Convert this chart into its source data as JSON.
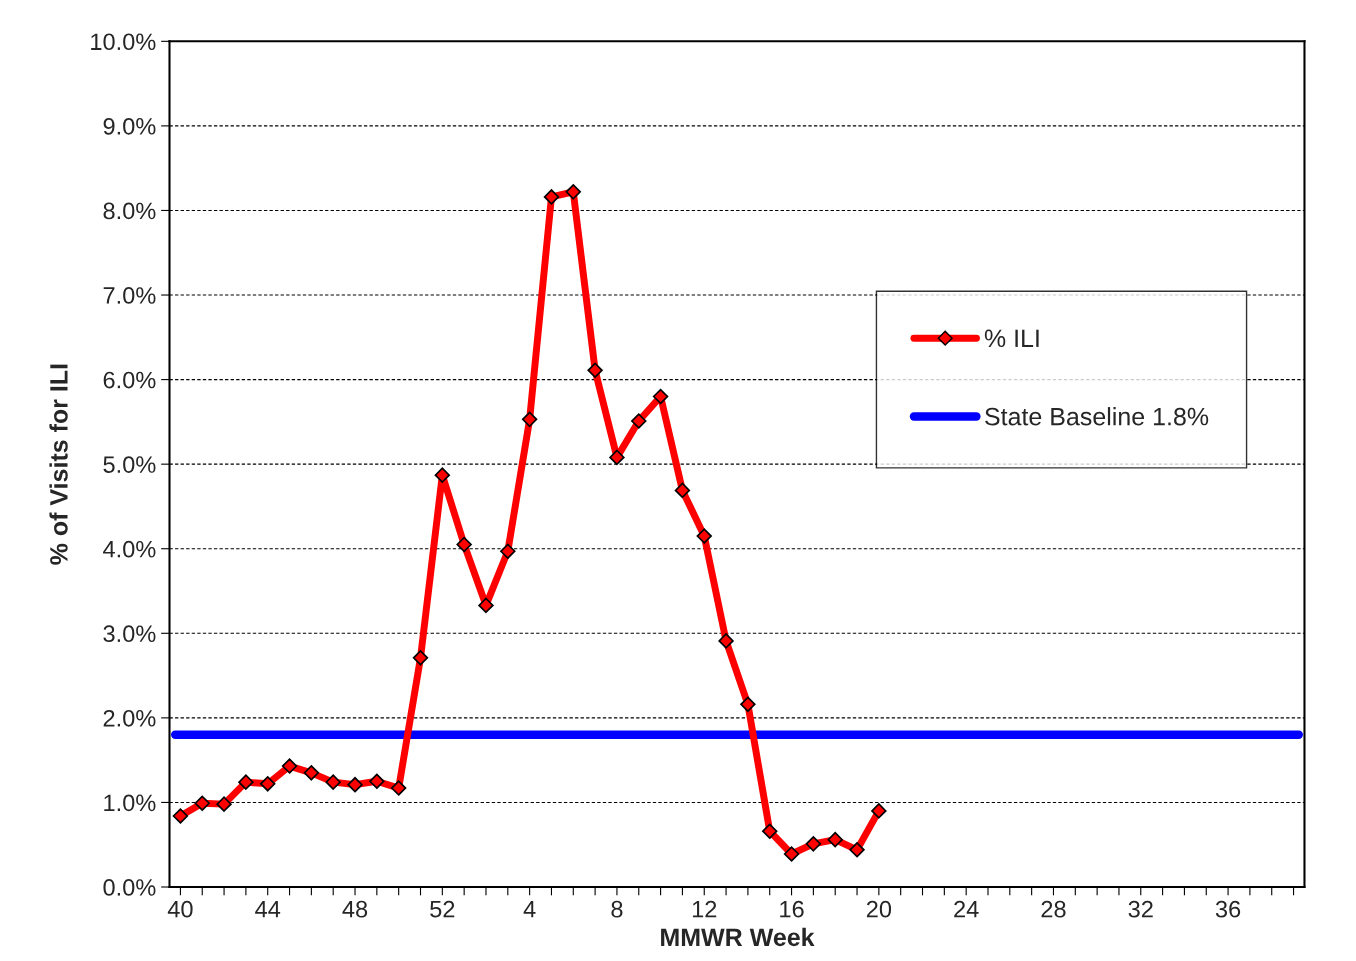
{
  "chart_data": {
    "type": "line",
    "xlabel": "MMWR Week",
    "ylabel": "% of Visits for ILI",
    "categories": [
      "40",
      null,
      null,
      null,
      "44",
      null,
      null,
      null,
      "48",
      null,
      null,
      null,
      "52",
      null,
      null,
      null,
      "4",
      null,
      null,
      null,
      "8",
      null,
      null,
      null,
      "12",
      null,
      null,
      null,
      "16",
      null,
      null,
      null,
      "20",
      null,
      null,
      null,
      "24",
      null,
      null,
      null,
      "28",
      null,
      null,
      null,
      "32",
      null,
      null,
      null,
      "36",
      null,
      null,
      null
    ],
    "series": [
      {
        "name": "% ILI",
        "color": "#ff0000",
        "values": [
          0.84,
          0.99,
          0.98,
          1.24,
          1.22,
          1.43,
          1.35,
          1.24,
          1.21,
          1.25,
          1.17,
          2.71,
          4.87,
          4.05,
          3.33,
          3.97,
          5.53,
          8.16,
          8.22,
          6.11,
          5.08,
          5.51,
          5.8,
          4.69,
          4.15,
          2.91,
          2.16,
          0.66,
          0.39,
          0.51,
          0.56,
          0.44,
          0.9,
          null,
          null,
          null,
          null,
          null,
          null,
          null,
          null,
          null,
          null,
          null,
          null,
          null,
          null,
          null,
          null,
          null,
          null,
          null
        ]
      }
    ],
    "ref_lines": [
      {
        "axis": "y",
        "value": 1.8,
        "label": "State Baseline 1.8%",
        "color": "#0000ff"
      }
    ],
    "ylim": [
      0,
      10
    ],
    "yticks": [
      {
        "value": 0,
        "label": "0.0%"
      },
      {
        "value": 1,
        "label": "1.0%"
      },
      {
        "value": 2,
        "label": "2.0%"
      },
      {
        "value": 3,
        "label": "3.0%"
      },
      {
        "value": 4,
        "label": "4.0%"
      },
      {
        "value": 5,
        "label": "5.0%"
      },
      {
        "value": 6,
        "label": "6.0%"
      },
      {
        "value": 7,
        "label": "7.0%"
      },
      {
        "value": 8,
        "label": "8.0%"
      },
      {
        "value": 9,
        "label": "9.0%"
      },
      {
        "value": 10,
        "label": "10.0%"
      }
    ],
    "grid": "y",
    "legend": "right",
    "marker": "diamond",
    "line_style": "solid"
  }
}
